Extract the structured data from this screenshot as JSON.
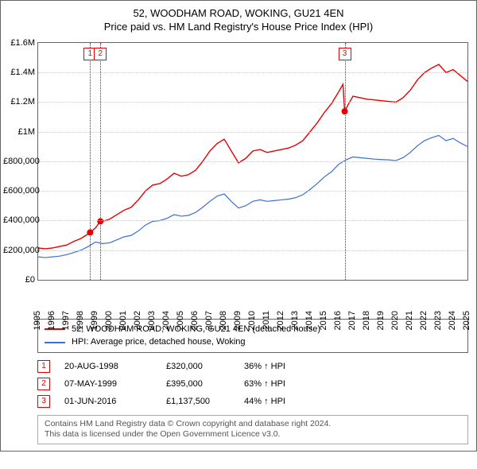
{
  "title": {
    "line1": "52, WOODHAM ROAD, WOKING, GU21 4EN",
    "line2": "Price paid vs. HM Land Registry's House Price Index (HPI)"
  },
  "chart": {
    "background": "#ffffff",
    "grid_color": "#cccccc",
    "border_color": "#666666",
    "y": {
      "min": 0,
      "max": 1600000,
      "tick_step": 200000,
      "labels": [
        "£0",
        "£200,000",
        "£400,000",
        "£600,000",
        "£800,000",
        "£1M",
        "£1.2M",
        "£1.4M",
        "£1.6M"
      ],
      "label_fontsize": 11
    },
    "x": {
      "min": 1995,
      "max": 2025,
      "tick_step": 1,
      "labels": [
        "1995",
        "1996",
        "1997",
        "1998",
        "1999",
        "2000",
        "2001",
        "2002",
        "2003",
        "2004",
        "2005",
        "2006",
        "2007",
        "2008",
        "2009",
        "2010",
        "2011",
        "2012",
        "2013",
        "2014",
        "2015",
        "2016",
        "2017",
        "2018",
        "2019",
        "2020",
        "2021",
        "2022",
        "2023",
        "2024",
        "2025"
      ],
      "label_fontsize": 11
    },
    "series": [
      {
        "id": "property",
        "label": "52, WOODHAM ROAD, WOKING, GU21 4EN (detached house)",
        "color": "#e60000",
        "line_width": 1.4,
        "points": [
          [
            1995.0,
            215000
          ],
          [
            1995.5,
            210000
          ],
          [
            1996.0,
            215000
          ],
          [
            1996.5,
            225000
          ],
          [
            1997.0,
            235000
          ],
          [
            1997.5,
            260000
          ],
          [
            1998.0,
            280000
          ],
          [
            1998.5,
            310000
          ],
          [
            1998.63,
            320000
          ],
          [
            1999.0,
            350000
          ],
          [
            1999.35,
            395000
          ],
          [
            1999.7,
            400000
          ],
          [
            2000.0,
            410000
          ],
          [
            2000.5,
            440000
          ],
          [
            2001.0,
            470000
          ],
          [
            2001.5,
            490000
          ],
          [
            2002.0,
            540000
          ],
          [
            2002.5,
            600000
          ],
          [
            2003.0,
            640000
          ],
          [
            2003.5,
            650000
          ],
          [
            2004.0,
            680000
          ],
          [
            2004.5,
            720000
          ],
          [
            2005.0,
            700000
          ],
          [
            2005.5,
            710000
          ],
          [
            2006.0,
            740000
          ],
          [
            2006.5,
            800000
          ],
          [
            2007.0,
            870000
          ],
          [
            2007.5,
            920000
          ],
          [
            2008.0,
            950000
          ],
          [
            2008.5,
            870000
          ],
          [
            2009.0,
            790000
          ],
          [
            2009.5,
            820000
          ],
          [
            2010.0,
            870000
          ],
          [
            2010.5,
            880000
          ],
          [
            2011.0,
            860000
          ],
          [
            2011.5,
            870000
          ],
          [
            2012.0,
            880000
          ],
          [
            2012.5,
            890000
          ],
          [
            2013.0,
            910000
          ],
          [
            2013.5,
            940000
          ],
          [
            2014.0,
            1000000
          ],
          [
            2014.5,
            1060000
          ],
          [
            2015.0,
            1130000
          ],
          [
            2015.5,
            1190000
          ],
          [
            2016.0,
            1270000
          ],
          [
            2016.3,
            1320000
          ],
          [
            2016.42,
            1137500
          ],
          [
            2016.7,
            1190000
          ],
          [
            2017.0,
            1240000
          ],
          [
            2017.5,
            1230000
          ],
          [
            2018.0,
            1220000
          ],
          [
            2018.5,
            1215000
          ],
          [
            2019.0,
            1210000
          ],
          [
            2019.5,
            1205000
          ],
          [
            2020.0,
            1200000
          ],
          [
            2020.5,
            1230000
          ],
          [
            2021.0,
            1280000
          ],
          [
            2021.5,
            1350000
          ],
          [
            2022.0,
            1400000
          ],
          [
            2022.5,
            1430000
          ],
          [
            2023.0,
            1455000
          ],
          [
            2023.5,
            1400000
          ],
          [
            2024.0,
            1420000
          ],
          [
            2024.5,
            1380000
          ],
          [
            2025.0,
            1340000
          ]
        ]
      },
      {
        "id": "hpi",
        "label": "HPI: Average price, detached house, Woking",
        "color": "#3b6fd6",
        "line_width": 1.2,
        "points": [
          [
            1995.0,
            155000
          ],
          [
            1995.5,
            150000
          ],
          [
            1996.0,
            155000
          ],
          [
            1996.5,
            160000
          ],
          [
            1997.0,
            170000
          ],
          [
            1997.5,
            185000
          ],
          [
            1998.0,
            200000
          ],
          [
            1998.5,
            225000
          ],
          [
            1999.0,
            255000
          ],
          [
            1999.5,
            245000
          ],
          [
            2000.0,
            250000
          ],
          [
            2000.5,
            270000
          ],
          [
            2001.0,
            290000
          ],
          [
            2001.5,
            300000
          ],
          [
            2002.0,
            330000
          ],
          [
            2002.5,
            370000
          ],
          [
            2003.0,
            395000
          ],
          [
            2003.5,
            400000
          ],
          [
            2004.0,
            415000
          ],
          [
            2004.5,
            440000
          ],
          [
            2005.0,
            430000
          ],
          [
            2005.5,
            435000
          ],
          [
            2006.0,
            455000
          ],
          [
            2006.5,
            490000
          ],
          [
            2007.0,
            530000
          ],
          [
            2007.5,
            565000
          ],
          [
            2008.0,
            580000
          ],
          [
            2008.5,
            530000
          ],
          [
            2009.0,
            485000
          ],
          [
            2009.5,
            500000
          ],
          [
            2010.0,
            530000
          ],
          [
            2010.5,
            540000
          ],
          [
            2011.0,
            530000
          ],
          [
            2011.5,
            535000
          ],
          [
            2012.0,
            540000
          ],
          [
            2012.5,
            545000
          ],
          [
            2013.0,
            555000
          ],
          [
            2013.5,
            575000
          ],
          [
            2014.0,
            610000
          ],
          [
            2014.5,
            650000
          ],
          [
            2015.0,
            695000
          ],
          [
            2015.5,
            730000
          ],
          [
            2016.0,
            780000
          ],
          [
            2016.5,
            810000
          ],
          [
            2017.0,
            830000
          ],
          [
            2017.5,
            825000
          ],
          [
            2018.0,
            820000
          ],
          [
            2018.5,
            815000
          ],
          [
            2019.0,
            812000
          ],
          [
            2019.5,
            810000
          ],
          [
            2020.0,
            805000
          ],
          [
            2020.5,
            825000
          ],
          [
            2021.0,
            860000
          ],
          [
            2021.5,
            905000
          ],
          [
            2022.0,
            940000
          ],
          [
            2022.5,
            960000
          ],
          [
            2023.0,
            975000
          ],
          [
            2023.5,
            940000
          ],
          [
            2024.0,
            955000
          ],
          [
            2024.5,
            925000
          ],
          [
            2025.0,
            900000
          ]
        ]
      }
    ],
    "sale_markers": [
      {
        "n": "1",
        "x": 1998.63,
        "y": 320000,
        "color": "#e60000"
      },
      {
        "n": "2",
        "x": 1999.35,
        "y": 395000,
        "color": "#e60000"
      },
      {
        "n": "3",
        "x": 2016.42,
        "y": 1137500,
        "color": "#e60000"
      }
    ],
    "point_radius": 4
  },
  "legend": {
    "items": [
      {
        "color": "#e60000",
        "label": "52, WOODHAM ROAD, WOKING, GU21 4EN (detached house)"
      },
      {
        "color": "#3b6fd6",
        "label": "HPI: Average price, detached house, Woking"
      }
    ]
  },
  "sales": [
    {
      "n": "1",
      "color": "#e60000",
      "date": "20-AUG-1998",
      "price": "£320,000",
      "delta": "36% ↑ HPI"
    },
    {
      "n": "2",
      "color": "#e60000",
      "date": "07-MAY-1999",
      "price": "£395,000",
      "delta": "63% ↑ HPI"
    },
    {
      "n": "3",
      "color": "#e60000",
      "date": "01-JUN-2016",
      "price": "£1,137,500",
      "delta": "44% ↑ HPI"
    }
  ],
  "footer": {
    "line1": "Contains HM Land Registry data © Crown copyright and database right 2024.",
    "line2": "This data is licensed under the Open Government Licence v3.0."
  }
}
